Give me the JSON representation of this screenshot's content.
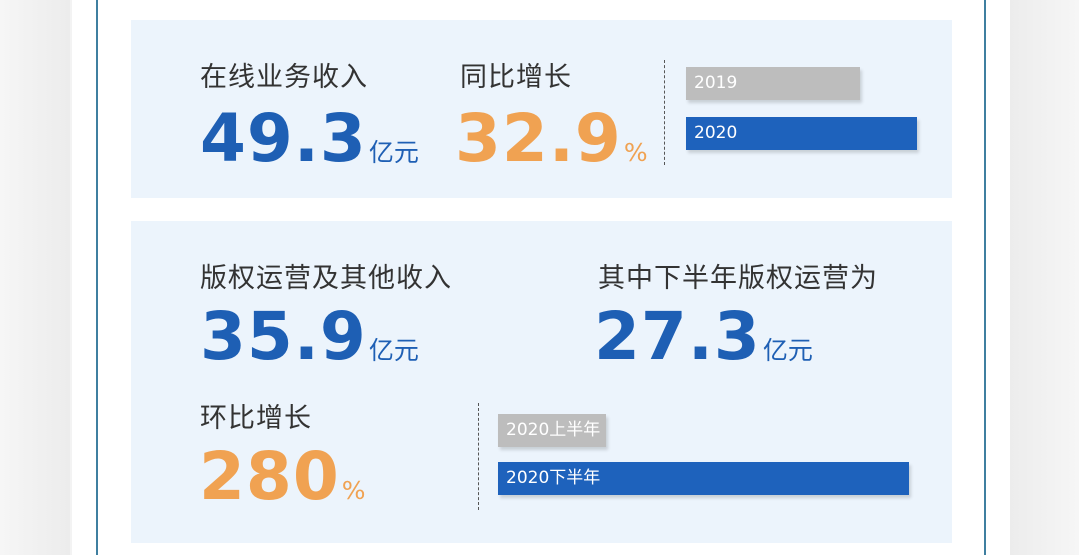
{
  "colors": {
    "blue": "#1e5fb4",
    "orange": "#f0a252",
    "bar_gray": "#bdbdbd",
    "bar_blue": "#1e62bc",
    "panel_bg": "#ecf4fc"
  },
  "online": {
    "label": "在线业务收入",
    "value": "49.3",
    "unit": "亿元",
    "growth_label": "同比增长",
    "growth_value": "32.9",
    "growth_unit": "%"
  },
  "copyright": {
    "label": "版权运营及其他收入",
    "value": "35.9",
    "unit": "亿元",
    "h2_label": "其中下半年版权运营为",
    "h2_value": "27.3",
    "h2_unit": "亿元",
    "qoq_label": "环比增长",
    "qoq_value": "280",
    "qoq_unit": "%"
  },
  "chart_data": [
    {
      "type": "bar",
      "orientation": "horizontal",
      "categories": [
        "2019",
        "2020"
      ],
      "values": [
        37.1,
        49.3
      ],
      "xlim": [
        0,
        49.3
      ],
      "colors": [
        "#bdbdbd",
        "#1e62bc"
      ]
    },
    {
      "type": "bar",
      "orientation": "horizontal",
      "categories": [
        "2020上半年",
        "2020下半年"
      ],
      "values": [
        7.2,
        27.3
      ],
      "xlim": [
        0,
        27.3
      ],
      "colors": [
        "#bdbdbd",
        "#1e62bc"
      ]
    }
  ]
}
